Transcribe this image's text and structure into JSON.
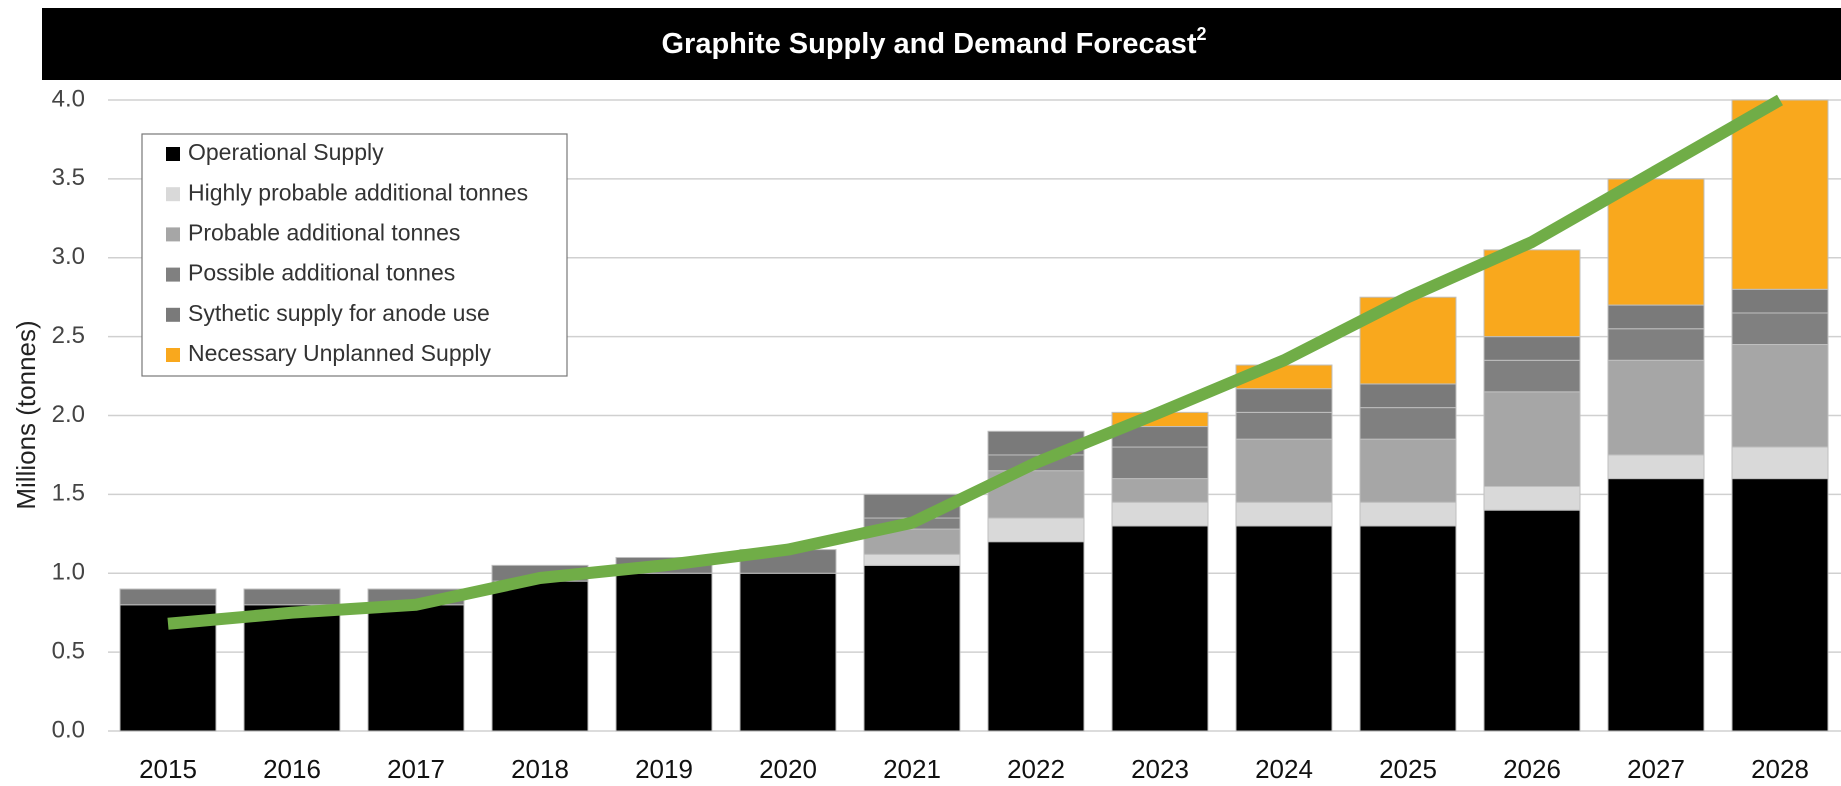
{
  "chart_data": {
    "type": "bar",
    "stacked": true,
    "title": "Graphite Supply and Demand Forecast",
    "title_note": "2",
    "y_label": "Millions (tonnes)",
    "categories": [
      "2015",
      "2016",
      "2017",
      "2018",
      "2019",
      "2020",
      "2021",
      "2022",
      "2023",
      "2024",
      "2025",
      "2026",
      "2027",
      "2028"
    ],
    "series": [
      {
        "name": "Operational Supply",
        "color": "#000000",
        "values": [
          0.8,
          0.8,
          0.8,
          0.95,
          1.0,
          1.0,
          1.05,
          1.2,
          1.3,
          1.3,
          1.3,
          1.4,
          1.6,
          1.6
        ]
      },
      {
        "name": "Highly probable additional tonnes",
        "color": "#d9d9d9",
        "values": [
          0,
          0,
          0,
          0,
          0,
          0,
          0.07,
          0.15,
          0.15,
          0.15,
          0.15,
          0.15,
          0.15,
          0.2
        ]
      },
      {
        "name": "Probable additional tonnes",
        "color": "#a6a6a6",
        "values": [
          0,
          0,
          0,
          0,
          0,
          0,
          0.16,
          0.3,
          0.15,
          0.4,
          0.4,
          0.6,
          0.6,
          0.65
        ]
      },
      {
        "name": "Possible additional tonnes",
        "color": "#808080",
        "values": [
          0,
          0,
          0,
          0,
          0,
          0,
          0.07,
          0.1,
          0.2,
          0.17,
          0.2,
          0.2,
          0.2,
          0.2
        ]
      },
      {
        "name": "Sythetic supply for anode use",
        "color": "#7a7a7a",
        "values": [
          0.1,
          0.1,
          0.1,
          0.1,
          0.1,
          0.15,
          0.15,
          0.15,
          0.13,
          0.15,
          0.15,
          0.15,
          0.15,
          0.15
        ]
      },
      {
        "name": "Necessary Unplanned Supply",
        "color": "#f9a81d",
        "values": [
          0,
          0,
          0,
          0,
          0,
          0,
          0,
          0,
          0.09,
          0.15,
          0.55,
          0.55,
          0.8,
          1.2
        ]
      }
    ],
    "demand": {
      "color": "#70ad47",
      "values": [
        0.68,
        0.75,
        0.8,
        0.97,
        1.05,
        1.15,
        1.32,
        1.7,
        2.02,
        2.35,
        2.75,
        3.1,
        3.55,
        4.0
      ]
    },
    "ylim": [
      0,
      4
    ],
    "yticks": [
      {
        "value": 0,
        "label": "0.0"
      },
      0.5,
      {
        "value": 1,
        "label": "1.0"
      },
      1.5,
      {
        "value": 2,
        "label": "2.0"
      },
      2.5,
      {
        "value": 3,
        "label": "3.0"
      },
      3.5,
      {
        "value": 4,
        "label": "4.0"
      }
    ],
    "grid": true,
    "legend": "upper left"
  }
}
